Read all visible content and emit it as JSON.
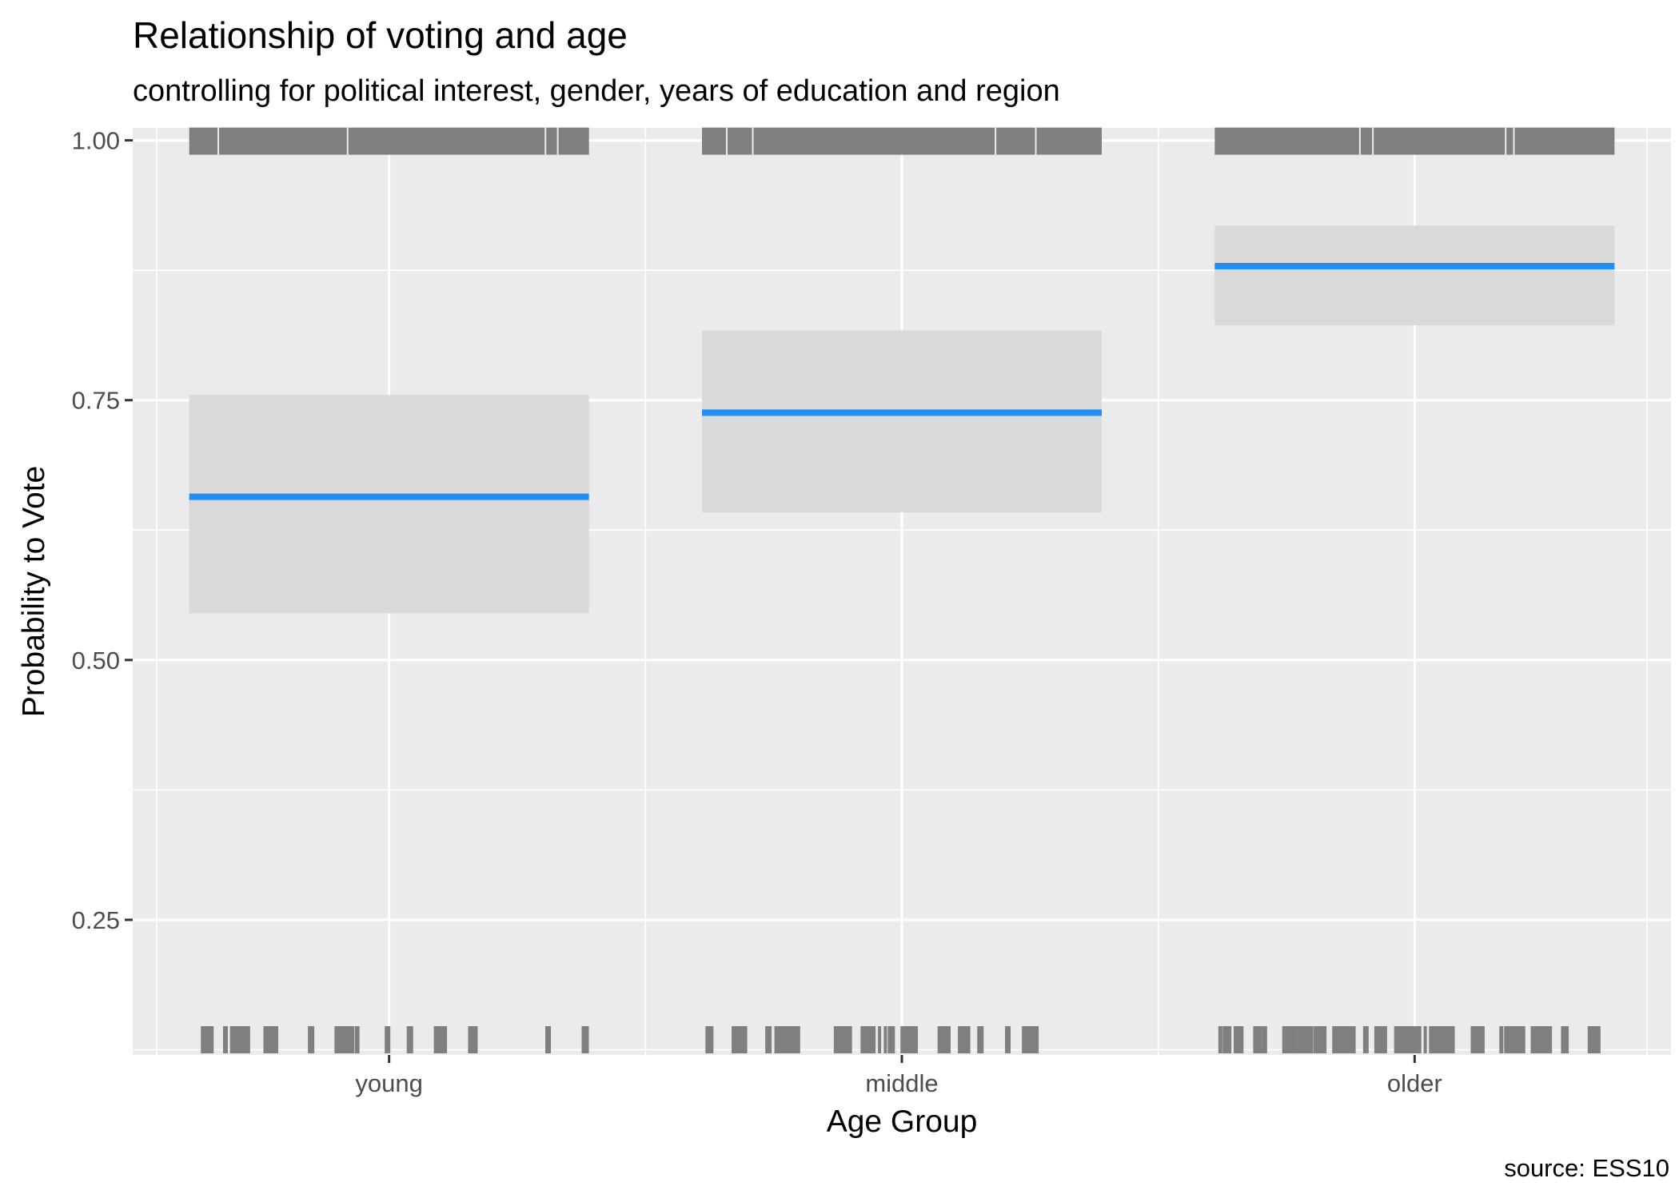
{
  "chart_data": {
    "type": "point-range",
    "title": "Relationship of voting and age",
    "subtitle": "controlling for political interest, gender, years of education and region",
    "xlabel": "Age Group",
    "ylabel": "Probability to Vote",
    "caption": "source: ESS10",
    "categories": [
      "young",
      "middle",
      "older"
    ],
    "estimate": [
      0.657,
      0.738,
      0.879
    ],
    "conf_low": [
      0.545,
      0.642,
      0.822
    ],
    "conf_high": [
      0.755,
      0.817,
      0.918
    ],
    "yticks": [
      0.25,
      0.5,
      0.75,
      1.0
    ],
    "ytick_labels": [
      "0.25",
      "0.50",
      "0.75",
      "1.00"
    ],
    "ylim": [
      0.12,
      1.012
    ],
    "rug_values": [
      0.0,
      1.0
    ],
    "grid": true,
    "colors": {
      "estimate": "#1f8ff5",
      "ribbon": "#d9d9d9",
      "rug": "#7f7f7f",
      "panel": "#ebebeb",
      "grid": "#ffffff"
    }
  }
}
